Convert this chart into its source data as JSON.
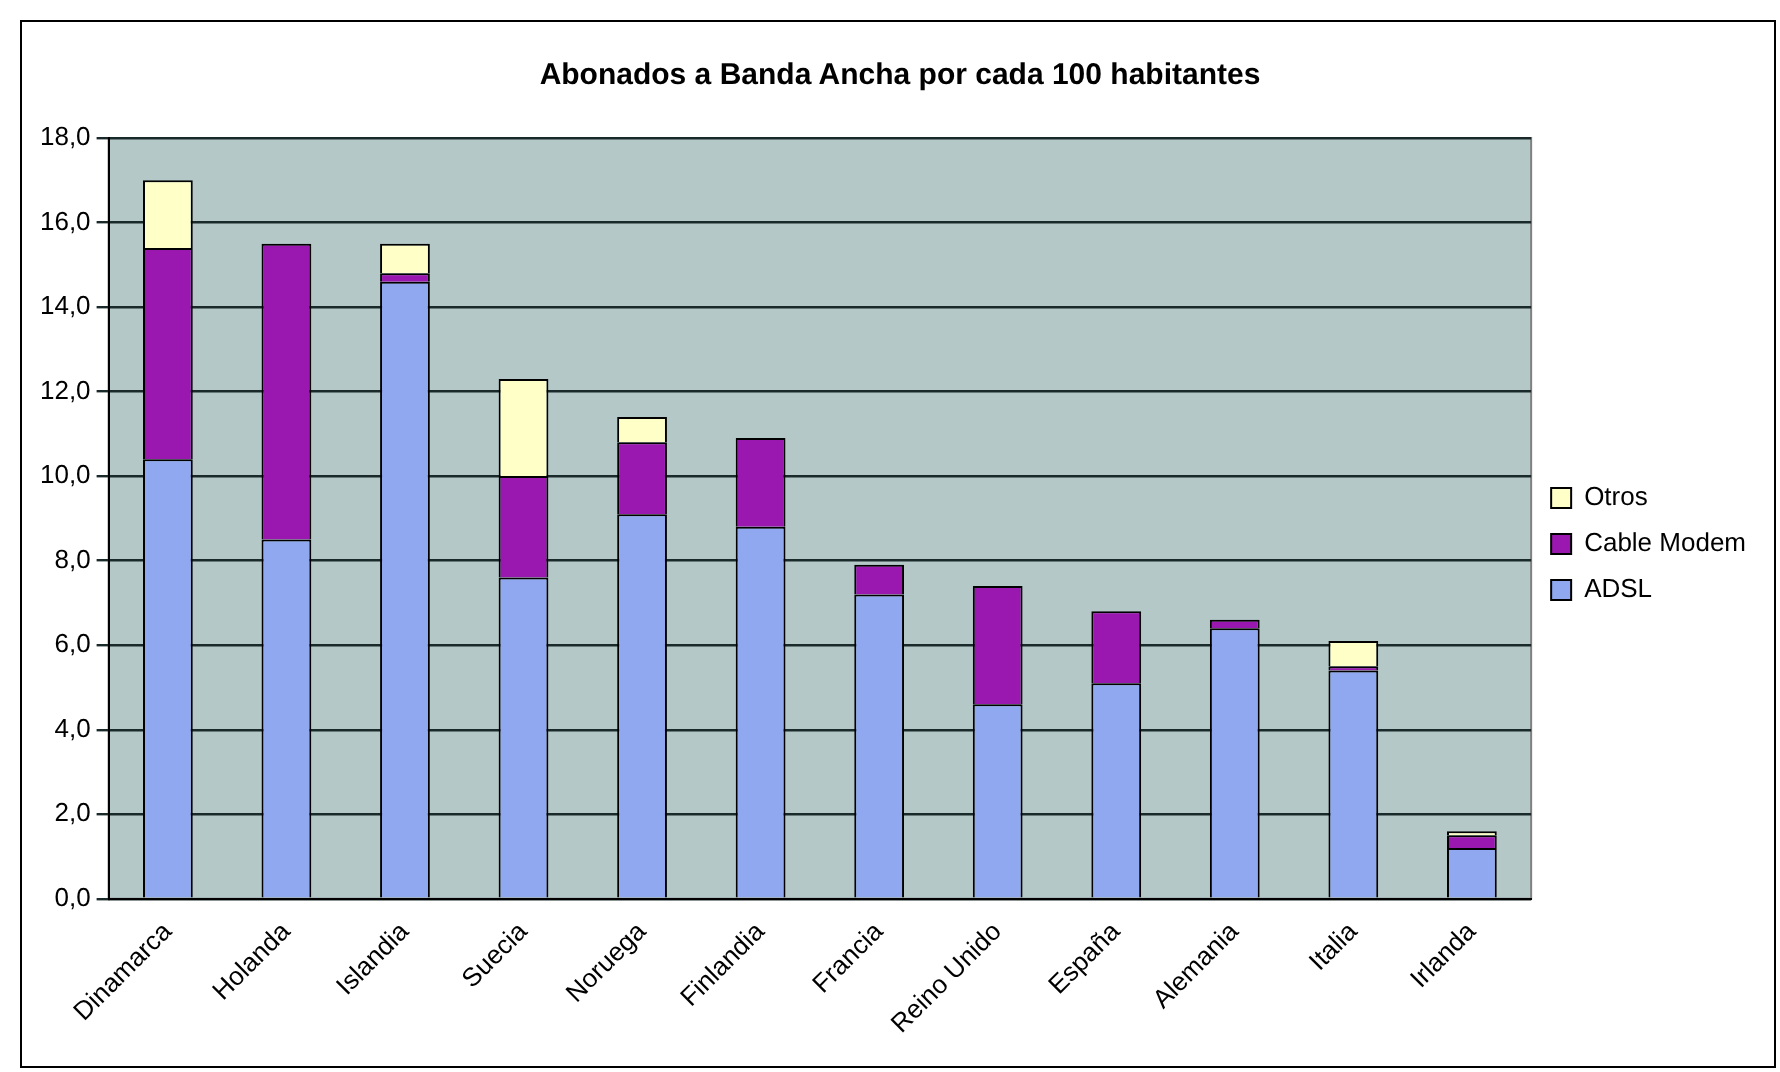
{
  "chart_data": {
    "type": "bar",
    "title": "Abonados a Banda Ancha por cada 100 habitantes",
    "stacked": true,
    "grid": "y",
    "legend": "right",
    "categories": [
      "Dinamarca",
      "Holanda",
      "Islandia",
      "Suecia",
      "Noruega",
      "Finlandia",
      "Francia",
      "Reino Unido",
      "España",
      "Alemania",
      "Italia",
      "Irlanda"
    ],
    "series": [
      {
        "name": "ADSL",
        "color": "#8fa8f0",
        "values": [
          10.4,
          8.5,
          14.6,
          7.6,
          9.1,
          8.8,
          7.2,
          4.6,
          5.1,
          6.4,
          5.4,
          1.2
        ]
      },
      {
        "name": "Cable Modem",
        "color": "#9b18b0",
        "values": [
          5.0,
          7.0,
          0.2,
          2.4,
          1.7,
          2.1,
          0.7,
          2.8,
          1.7,
          0.2,
          0.1,
          0.3
        ]
      },
      {
        "name": "Otros",
        "color": "#ffffc8",
        "values": [
          1.6,
          0,
          0.7,
          2.3,
          0.6,
          0,
          0,
          0,
          0,
          0,
          0.6,
          0.1
        ]
      }
    ],
    "ylim": [
      0,
      18
    ],
    "yticks": [
      {
        "value": 0,
        "label": "0,0"
      },
      {
        "value": 2,
        "label": "2,0"
      },
      {
        "value": 4,
        "label": "4,0"
      },
      {
        "value": 6,
        "label": "6,0"
      },
      {
        "value": 8,
        "label": "8,0"
      },
      {
        "value": 10,
        "label": "10,0"
      },
      {
        "value": 12,
        "label": "12,0"
      },
      {
        "value": 14,
        "label": "14,0"
      },
      {
        "value": 16,
        "label": "16,0"
      },
      {
        "value": 18,
        "label": "18,0"
      }
    ]
  }
}
